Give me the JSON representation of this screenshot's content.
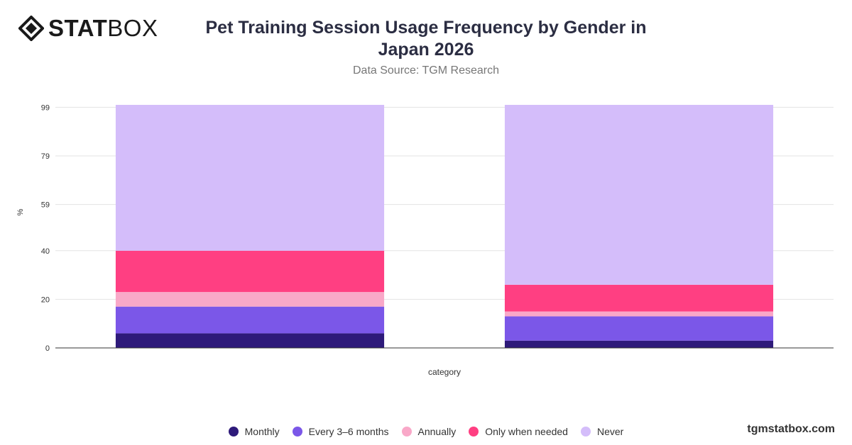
{
  "brand": {
    "logo_bold": "STAT",
    "logo_light": "BOX",
    "logo_icon": "diamond-logo-icon",
    "watermark": "tgmstatbox.com"
  },
  "chart_data": {
    "type": "bar",
    "stacked": true,
    "title": "Pet Training Session Usage Frequency by Gender in Japan 2026",
    "subtitle": "Data Source: TGM Research",
    "xlabel": "category",
    "ylabel": "%",
    "ylim": [
      0,
      100
    ],
    "yticks": [
      0,
      20,
      40,
      59,
      79,
      99
    ],
    "categories": [
      "",
      ""
    ],
    "grid": true,
    "legend_position": "bottom",
    "series": [
      {
        "name": "Monthly",
        "color": "#2e1a7a",
        "values": [
          6,
          3
        ]
      },
      {
        "name": "Every 3–6 months",
        "color": "#7b57e8",
        "values": [
          11,
          10
        ]
      },
      {
        "name": "Annually",
        "color": "#f9a8c8",
        "values": [
          6,
          2
        ]
      },
      {
        "name": "Only when needed",
        "color": "#ff3f82",
        "values": [
          17,
          11
        ]
      },
      {
        "name": "Never",
        "color": "#d4bdfa",
        "values": [
          60,
          74
        ]
      }
    ]
  }
}
